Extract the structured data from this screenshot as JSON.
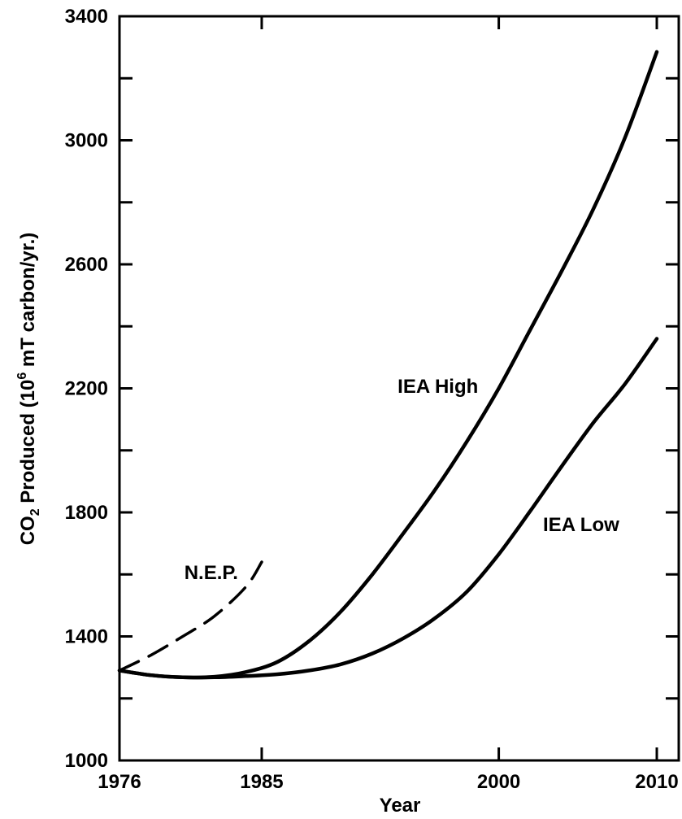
{
  "chart_data": {
    "type": "line",
    "title": "",
    "xlabel": "Year",
    "ylabel": {
      "prefix": "CO",
      "prefix_sub": "2",
      "middle": " Produced (10",
      "middle_sup": "6",
      "suffix": " mT carbon/yr.)"
    },
    "xlim": [
      1976,
      2011.5
    ],
    "ylim": [
      1000,
      3400
    ],
    "x_ticks": [
      1976,
      1985,
      2000,
      2010
    ],
    "y_ticks": [
      1000,
      1400,
      1800,
      2200,
      2600,
      3000,
      3400
    ],
    "grid": false,
    "series": [
      {
        "name": "IEA High",
        "style": "solid",
        "color": "#000000",
        "points": [
          [
            1976,
            1290
          ],
          [
            1978,
            1275
          ],
          [
            1980,
            1268
          ],
          [
            1982,
            1270
          ],
          [
            1984,
            1285
          ],
          [
            1986,
            1318
          ],
          [
            1988,
            1385
          ],
          [
            1990,
            1480
          ],
          [
            1992,
            1600
          ],
          [
            1994,
            1735
          ],
          [
            1996,
            1875
          ],
          [
            1998,
            2030
          ],
          [
            2000,
            2200
          ],
          [
            2002,
            2390
          ],
          [
            2004,
            2580
          ],
          [
            2006,
            2780
          ],
          [
            2008,
            3010
          ],
          [
            2010,
            3285
          ]
        ]
      },
      {
        "name": "IEA Low",
        "style": "solid",
        "color": "#000000",
        "points": [
          [
            1976,
            1290
          ],
          [
            1978,
            1275
          ],
          [
            1980,
            1268
          ],
          [
            1982,
            1268
          ],
          [
            1984,
            1272
          ],
          [
            1986,
            1278
          ],
          [
            1988,
            1290
          ],
          [
            1990,
            1310
          ],
          [
            1992,
            1345
          ],
          [
            1994,
            1395
          ],
          [
            1996,
            1460
          ],
          [
            1998,
            1545
          ],
          [
            2000,
            1665
          ],
          [
            2002,
            1805
          ],
          [
            2004,
            1950
          ],
          [
            2006,
            2090
          ],
          [
            2008,
            2215
          ],
          [
            2010,
            2360
          ]
        ]
      },
      {
        "name": "N.E.P.",
        "style": "dashed",
        "color": "#000000",
        "points": [
          [
            1976,
            1290
          ],
          [
            1978,
            1340
          ],
          [
            1980,
            1400
          ],
          [
            1982,
            1465
          ],
          [
            1984,
            1560
          ],
          [
            1985,
            1640
          ]
        ]
      }
    ],
    "annotations": [
      {
        "text": "IEA High",
        "series": "IEA High",
        "x": 1993.6,
        "y": 2185
      },
      {
        "text": "IEA Low",
        "series": "IEA Low",
        "x": 2002.8,
        "y": 1740
      },
      {
        "text": "N.E.P.",
        "series": "N.E.P.",
        "x": 1980.1,
        "y": 1585
      }
    ]
  }
}
